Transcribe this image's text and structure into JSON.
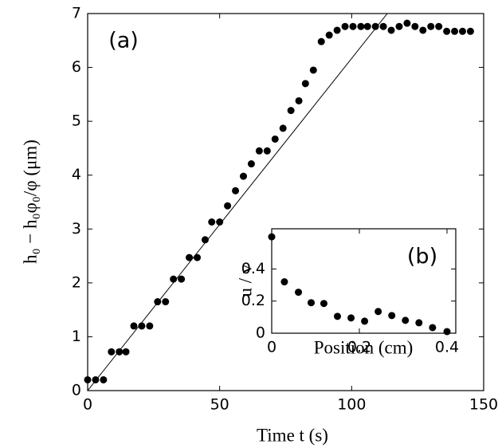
{
  "chart_data": [
    {
      "type": "scatter",
      "x_label": "Time t (s)",
      "y_label": "h₀ − h₀φ₀/φ (μm)",
      "annotation": "(a)",
      "xlim": [
        0,
        150
      ],
      "xticks": [
        0,
        50,
        100,
        150
      ],
      "ylim": [
        0,
        7
      ],
      "yticks": [
        0,
        1,
        2,
        3,
        4,
        5,
        6,
        7
      ],
      "series": [
        {
          "style": "markers",
          "color": "#000000",
          "x": [
            0,
            3,
            6,
            9,
            12,
            14.5,
            17.5,
            20.5,
            23.5,
            26.5,
            29.5,
            32.5,
            35.5,
            38.5,
            41.5,
            44.5,
            47,
            50,
            53,
            56,
            59,
            62,
            65,
            68,
            71,
            74,
            77,
            80,
            82.5,
            85.5,
            88.5,
            91.5,
            94.5,
            97.5,
            100.5,
            103.5,
            106,
            109,
            112,
            115,
            118,
            121,
            124,
            127,
            130,
            133,
            136,
            139,
            142,
            145
          ],
          "values": [
            0.2,
            0.2,
            0.2,
            0.72,
            0.72,
            0.72,
            1.2,
            1.2,
            1.2,
            1.65,
            1.65,
            2.07,
            2.07,
            2.47,
            2.47,
            2.8,
            3.13,
            3.13,
            3.43,
            3.71,
            3.98,
            4.21,
            4.45,
            4.45,
            4.67,
            4.87,
            5.2,
            5.38,
            5.7,
            5.95,
            6.48,
            6.6,
            6.69,
            6.76,
            6.76,
            6.76,
            6.76,
            6.76,
            6.76,
            6.69,
            6.76,
            6.82,
            6.76,
            6.69,
            6.76,
            6.76,
            6.67,
            6.67,
            6.67,
            6.67
          ]
        },
        {
          "style": "line",
          "color": "#000000",
          "x": [
            0,
            113.5
          ],
          "values": [
            0,
            7
          ]
        }
      ]
    },
    {
      "type": "scatter",
      "x_label": "Position (cm)",
      "y_label": "u / v",
      "annotation": "(b)",
      "xlim": [
        0,
        0.42
      ],
      "xticks": [
        0,
        0.2,
        0.4
      ],
      "ylim": [
        0,
        0.65
      ],
      "yticks": [
        0,
        0.2,
        0.4
      ],
      "series": [
        {
          "style": "markers",
          "color": "#000000",
          "x": [
            0,
            0.029,
            0.061,
            0.09,
            0.119,
            0.15,
            0.181,
            0.212,
            0.243,
            0.274,
            0.305,
            0.336,
            0.367,
            0.4
          ],
          "values": [
            0.6,
            0.32,
            0.255,
            0.19,
            0.185,
            0.105,
            0.095,
            0.075,
            0.135,
            0.11,
            0.08,
            0.065,
            0.035,
            0.01
          ]
        }
      ]
    }
  ]
}
